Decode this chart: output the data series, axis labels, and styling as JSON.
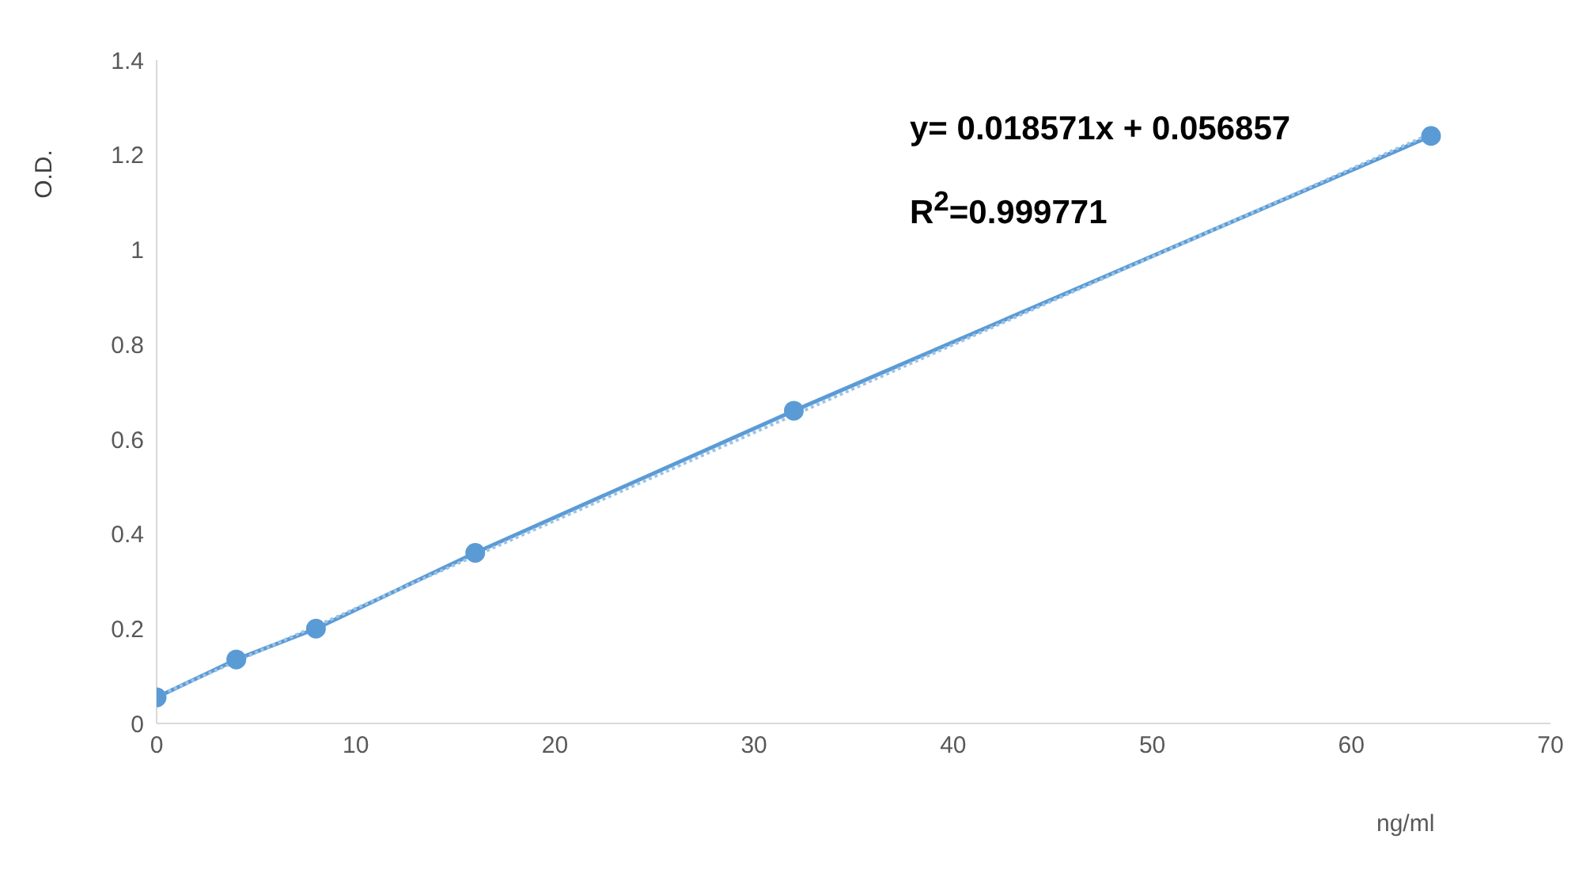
{
  "chart_data": {
    "type": "line",
    "ylabel": "O.D.",
    "xlabel": "ng/ml",
    "x": [
      0,
      4,
      8,
      16,
      32,
      64
    ],
    "xlim": [
      0,
      70
    ],
    "xticks": [
      0,
      10,
      20,
      30,
      40,
      50,
      60,
      70
    ],
    "ylim": [
      0,
      1.4
    ],
    "yticks": [
      0,
      0.2,
      0.4,
      0.6,
      0.8,
      1,
      1.2,
      1.4
    ],
    "grid": false,
    "marker": "circle",
    "series": [
      {
        "color": "#5b9bd5",
        "values": [
          0.055,
          0.135,
          0.2,
          0.36,
          0.66,
          1.24
        ]
      },
      {
        "type": "line",
        "x": [
          0,
          64
        ],
        "values": [
          0.057,
          1.245
        ],
        "color": "#9dc3e6",
        "line_style": "dotted",
        "marker": "none"
      }
    ],
    "annotations": [
      "y= 0.018571x + 0.056857",
      "R$^{2}$=0.999771"
    ]
  }
}
